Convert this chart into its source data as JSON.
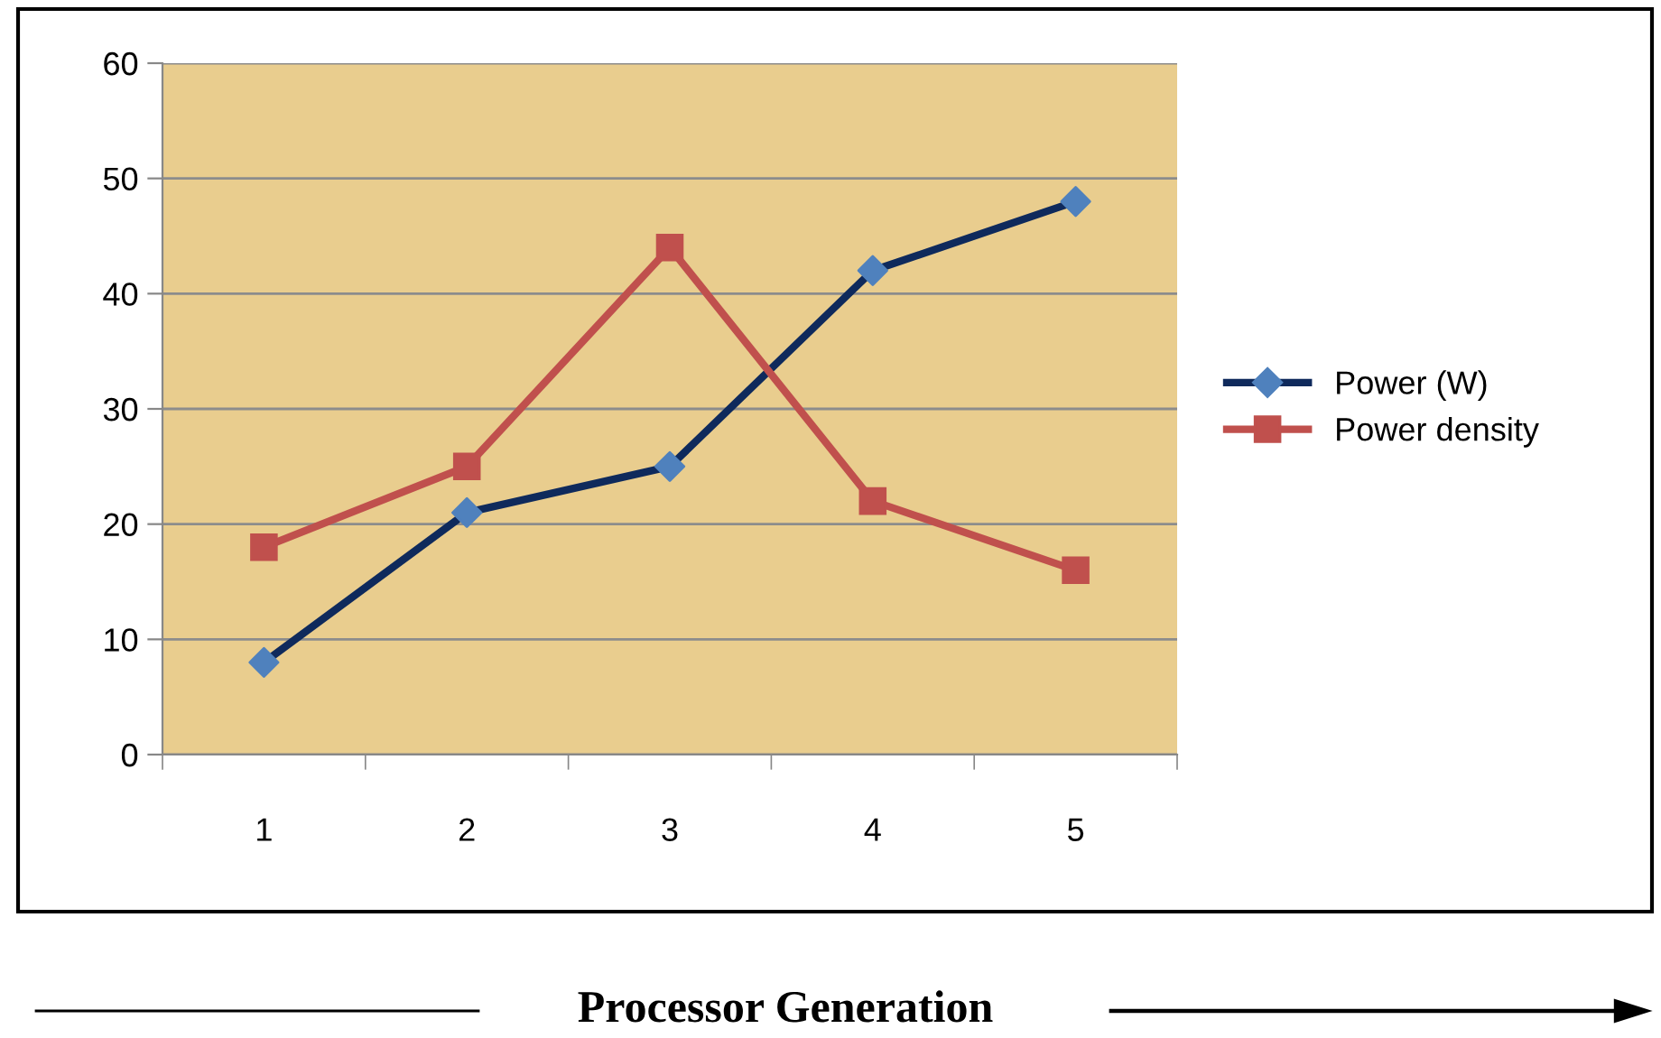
{
  "chart_data": {
    "type": "line",
    "xlabel": "Processor Generation",
    "categories": [
      "1",
      "2",
      "3",
      "4",
      "5"
    ],
    "series": [
      {
        "name": "Power (W)",
        "color": "#0f2a5c",
        "colors": [
          "#4f81bd",
          "#4f81bd",
          "#4f81bd",
          "#4f81bd",
          "#4f81bd"
        ],
        "marker": "diamond",
        "values": [
          8,
          21,
          25,
          42,
          48
        ]
      },
      {
        "name": "Power density",
        "color": "#c0504d",
        "marker": "square",
        "values": [
          18,
          25,
          44,
          22,
          16
        ]
      }
    ],
    "ylim": [
      0,
      60
    ],
    "yticks": [
      0,
      10,
      20,
      30,
      40,
      50,
      60
    ],
    "grid": "y",
    "legend": "right"
  }
}
